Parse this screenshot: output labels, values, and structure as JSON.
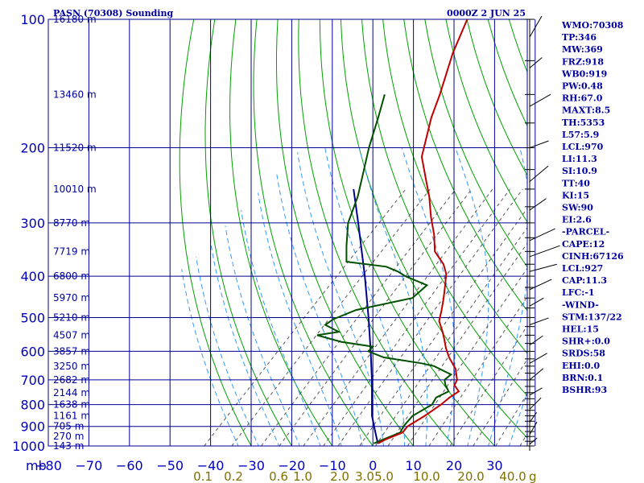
{
  "chart_data": {
    "type": "line",
    "title": "PASN (70308) Sounding",
    "time_label": "0000Z  2 JUN 25",
    "pressure_unit_label": "mb",
    "mixing_ratio_unit_label": "g",
    "pressure_ticks": [
      100,
      200,
      300,
      400,
      500,
      600,
      700,
      800,
      900,
      1000
    ],
    "pressure_range": [
      100,
      1000
    ],
    "temperature_ticks": [
      -80,
      -70,
      -60,
      -50,
      -40,
      -30,
      -20,
      -10,
      0,
      10,
      20,
      30
    ],
    "temperature_range": [
      -80,
      40
    ],
    "mixing_ratio_labels": [
      "0.1",
      "0.2",
      "0.6",
      "1.0",
      "2.0",
      "3.0",
      "5.0",
      "10.0",
      "20.0",
      "40.0"
    ],
    "height_labels": [
      {
        "p": 100,
        "label": "16180 m"
      },
      {
        "p": 150,
        "label": "13460 m"
      },
      {
        "p": 200,
        "label": "11520 m"
      },
      {
        "p": 250,
        "label": "10010 m"
      },
      {
        "p": 300,
        "label": "8770 m"
      },
      {
        "p": 350,
        "label": "7719 m"
      },
      {
        "p": 400,
        "label": "6800 m"
      },
      {
        "p": 450,
        "label": "5970 m"
      },
      {
        "p": 500,
        "label": "5210 m"
      },
      {
        "p": 550,
        "label": "4507 m"
      },
      {
        "p": 600,
        "label": "3857 m"
      },
      {
        "p": 650,
        "label": "3250 m"
      },
      {
        "p": 700,
        "label": "2682 m"
      },
      {
        "p": 750,
        "label": "2144 m"
      },
      {
        "p": 800,
        "label": "1638 m"
      },
      {
        "p": 850,
        "label": "1161 m"
      },
      {
        "p": 900,
        "label": "705 m"
      },
      {
        "p": 950,
        "label": "270 m"
      },
      {
        "p": 1000,
        "label": "143 m"
      }
    ],
    "temperature_profile": [
      [
        986,
        0.6
      ],
      [
        965,
        1.6
      ],
      [
        930,
        4.1
      ],
      [
        900,
        3.8
      ],
      [
        850,
        5.5
      ],
      [
        800,
        6.8
      ],
      [
        770,
        7.2
      ],
      [
        745,
        8.0
      ],
      [
        720,
        5.4
      ],
      [
        700,
        4.8
      ],
      [
        660,
        1.8
      ],
      [
        620,
        -2.6
      ],
      [
        590,
        -5.6
      ],
      [
        560,
        -8.4
      ],
      [
        540,
        -10.4
      ],
      [
        510,
        -13.8
      ],
      [
        480,
        -15.9
      ],
      [
        450,
        -18.3
      ],
      [
        420,
        -21.0
      ],
      [
        395,
        -23.5
      ],
      [
        375,
        -26.5
      ],
      [
        350,
        -31.7
      ],
      [
        320,
        -35.9
      ],
      [
        290,
        -41.1
      ],
      [
        260,
        -46.4
      ],
      [
        240,
        -50.7
      ],
      [
        210,
        -57.8
      ],
      [
        170,
        -64.9
      ],
      [
        150,
        -68.4
      ],
      [
        120,
        -75.2
      ],
      [
        100,
        -79.8
      ]
    ],
    "dewpoint_profile": [
      [
        986,
        -0.4
      ],
      [
        965,
        1.0
      ],
      [
        930,
        3.5
      ],
      [
        900,
        2.8
      ],
      [
        850,
        2.5
      ],
      [
        800,
        4.6
      ],
      [
        770,
        3.9
      ],
      [
        745,
        5.5
      ],
      [
        720,
        3.2
      ],
      [
        700,
        1.7
      ],
      [
        680,
        2.0
      ],
      [
        650,
        -4.2
      ],
      [
        640,
        -8.0
      ],
      [
        620,
        -18.7
      ],
      [
        600,
        -24.0
      ],
      [
        585,
        -24.0
      ],
      [
        570,
        -33.0
      ],
      [
        550,
        -40.5
      ],
      [
        540,
        -36.0
      ],
      [
        520,
        -41.0
      ],
      [
        505,
        -40.4
      ],
      [
        480,
        -37.0
      ],
      [
        450,
        -26.0
      ],
      [
        420,
        -25.5
      ],
      [
        400,
        -33.0
      ],
      [
        390,
        -36.0
      ],
      [
        380,
        -40.0
      ],
      [
        370,
        -51.0
      ],
      [
        340,
        -54.8
      ],
      [
        300,
        -60.0
      ],
      [
        260,
        -64.0
      ],
      [
        230,
        -68.2
      ],
      [
        200,
        -73.0
      ],
      [
        170,
        -78.0
      ],
      [
        150,
        -82.0
      ]
    ],
    "parcel_path": [
      [
        986,
        0.6
      ],
      [
        927,
        -2.8
      ],
      [
        850,
        -7.5
      ],
      [
        700,
        -16.2
      ],
      [
        600,
        -23.4
      ],
      [
        500,
        -32.1
      ],
      [
        400,
        -43.0
      ],
      [
        300,
        -57.5
      ],
      [
        250,
        -66.8
      ]
    ],
    "indices": [
      "WMO:70308",
      "TP:346",
      "MW:369",
      "FRZ:918",
      "WB0:919",
      "PW:0.48",
      "RH:67.0",
      "MAXT:8.5",
      "TH:5353",
      "L57:5.9",
      "LCL:970",
      "LI:11.3",
      "SI:10.9",
      "TT:40",
      "KI:15",
      "SW:90",
      "EI:2.6",
      "-PARCEL-",
      "CAPE:12",
      "CINH:67126",
      "LCL:927",
      "CAP:11.3",
      "LFC:-1",
      "-WIND-",
      "STM:137/22",
      "HEL:15",
      "SHR+:0.0",
      "SRDS:58",
      "EHI:0.0",
      "BRN:0.1",
      "BSHR:93"
    ],
    "colors": {
      "temperature": "#c00000",
      "dewpoint": "#005000",
      "parcel": "#000090",
      "grid": "#000090",
      "dry_adiabat": "#00a000",
      "moist_adiabat": "#3399ff",
      "mixing_ratio": "#555555"
    }
  }
}
